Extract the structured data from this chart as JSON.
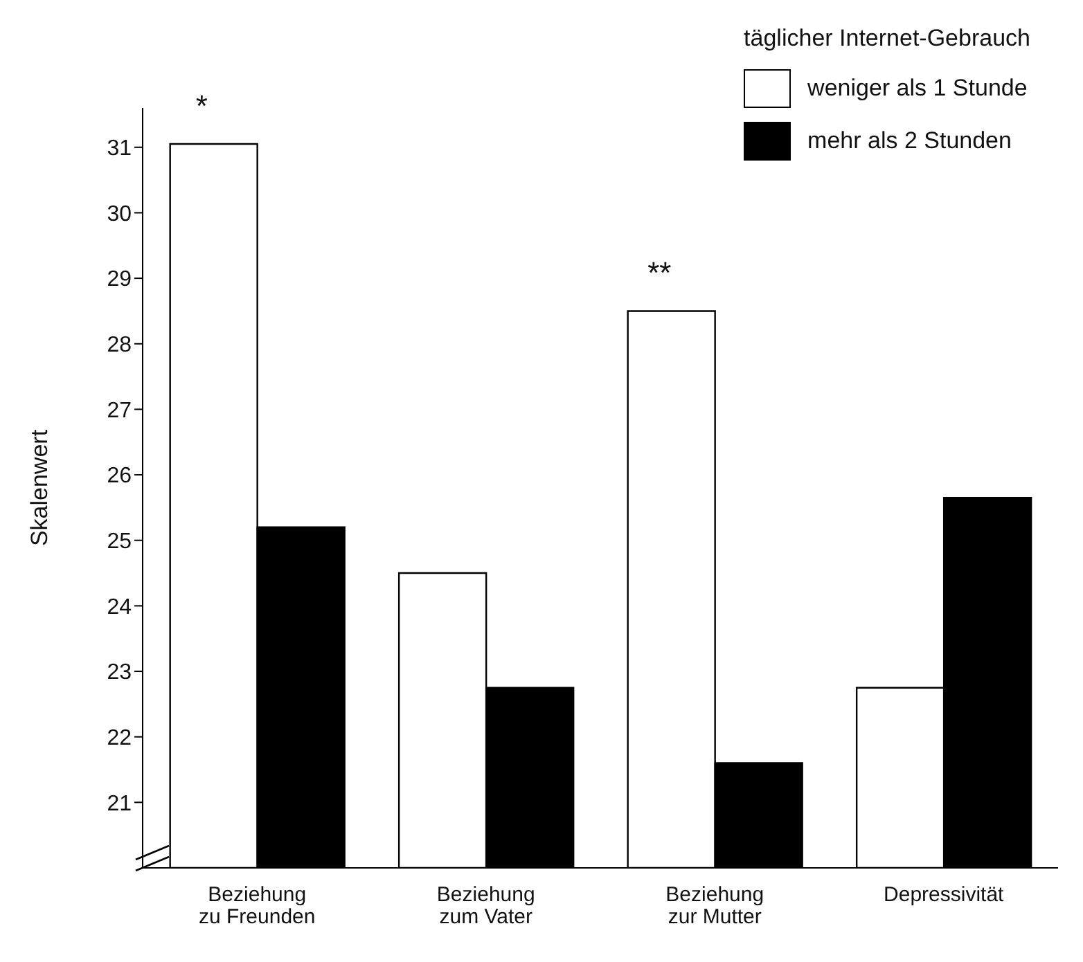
{
  "chart_data": {
    "type": "bar",
    "ylabel": "Skalenwert",
    "legend_title": "täglicher Internet-Gebrauch",
    "categories": [
      "Beziehung zu Freunden",
      "Beziehung zum Vater",
      "Beziehung zur Mutter",
      "Depressivität"
    ],
    "series": [
      {
        "name": "weniger als 1 Stunde",
        "color": "#ffffff",
        "values": [
          31.05,
          24.5,
          28.5,
          22.75
        ]
      },
      {
        "name": "mehr als 2 Stunden",
        "color": "#000000",
        "values": [
          25.2,
          22.75,
          21.6,
          25.65
        ]
      }
    ],
    "ylim": [
      20,
      31.6
    ],
    "yticks": [
      21,
      22,
      23,
      24,
      25,
      26,
      27,
      28,
      29,
      30,
      31
    ],
    "grid": false,
    "legend": "top right",
    "annotations": [
      {
        "text": "*",
        "x": "Beziehung zu Freunden",
        "y": 31.05
      },
      {
        "text": "**",
        "x": "Beziehung zur Mutter",
        "y": 28.5
      }
    ]
  }
}
